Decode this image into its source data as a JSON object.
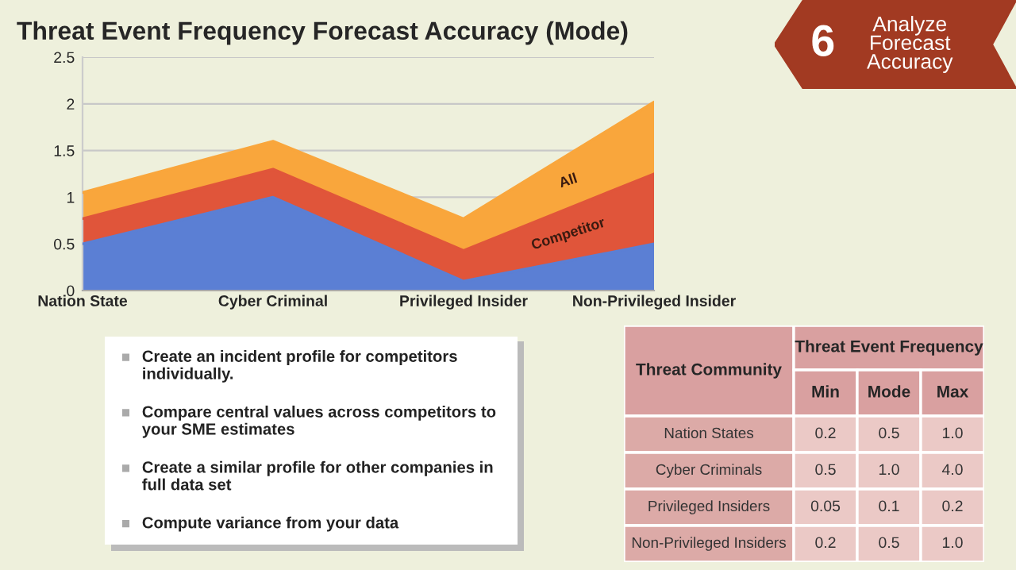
{
  "chart_data": [
    {
      "type": "area",
      "title": "Threat Event Frequency Forecast Accuracy (Mode)",
      "categories": [
        "Nation State",
        "Cyber Criminal",
        "Privileged Insider",
        "Non-Privileged Insider"
      ],
      "stacked": true,
      "series": [
        {
          "color": "#5b7fd4",
          "values": [
            0.5,
            1.0,
            0.1,
            0.5
          ]
        },
        {
          "name": "Competitor",
          "color": "#e0553a",
          "values": [
            0.27,
            0.3,
            0.33,
            0.75
          ]
        },
        {
          "name": "All",
          "color": "#f9a63c",
          "values": [
            0.28,
            0.3,
            0.34,
            0.77
          ]
        }
      ],
      "ylim": [
        0,
        2.5
      ],
      "yticks": [
        0,
        0.5,
        1,
        1.5,
        2,
        2.5
      ],
      "grid": "y"
    },
    {
      "type": "other",
      "annotations": [
        "6",
        "Analyze Forecast Accuracy"
      ]
    },
    {
      "type": "other",
      "annotations": [
        "Create an incident profile for competitors individually.",
        "Compare central values across competitors to your SME estimates",
        "Create a similar profile for other companies in full data set",
        "Compute variance from your data"
      ]
    },
    {
      "type": "other",
      "annotations": [
        "Threat Community",
        "Threat Event Frequency",
        "Min",
        "Mode",
        "Max",
        "Nation States",
        "0.2",
        "0.5",
        "1.0",
        "Cyber Criminals",
        "0.5",
        "1.0",
        "4.0",
        "Privileged Insiders",
        "0.05",
        "0.1",
        "0.2",
        "Non-Privileged Insiders",
        "0.2",
        "0.5",
        "1.0"
      ]
    }
  ]
}
